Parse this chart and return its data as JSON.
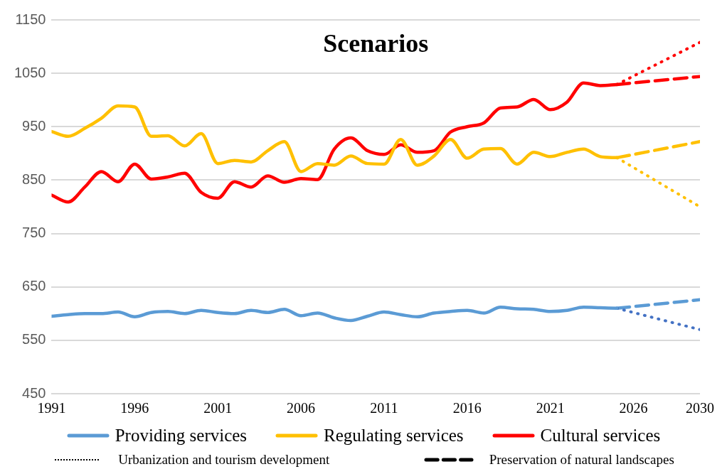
{
  "chart_data": {
    "type": "line",
    "title": "Scenarios",
    "xlim": [
      1991,
      2030
    ],
    "xticks": [
      1991,
      1996,
      2001,
      2006,
      2011,
      2016,
      2021,
      2026,
      2030
    ],
    "ylim": [
      450,
      1150
    ],
    "yticks": [
      450,
      550,
      650,
      750,
      850,
      950,
      1050,
      1150
    ],
    "grid": "y",
    "legend": "bottom",
    "line_style": "solid",
    "marker": "none",
    "series": [
      {
        "name": "Providing services",
        "color": "#5b9bd5",
        "x": [
          1991,
          1992,
          1993,
          1994,
          1995,
          1996,
          1997,
          1998,
          1999,
          2000,
          2001,
          2002,
          2003,
          2004,
          2005,
          2006,
          2007,
          2008,
          2009,
          2010,
          2011,
          2012,
          2013,
          2014,
          2015,
          2016,
          2017,
          2018,
          2019,
          2020,
          2021,
          2022,
          2023,
          2024,
          2025
        ],
        "values": [
          595,
          598,
          600,
          600,
          603,
          594,
          602,
          604,
          600,
          606,
          602,
          600,
          606,
          602,
          608,
          596,
          601,
          592,
          587,
          595,
          603,
          598,
          594,
          601,
          604,
          606,
          601,
          612,
          609,
          608,
          604,
          606,
          612,
          611,
          610
        ]
      },
      {
        "name": "Regulating services",
        "color": "#ffc000",
        "x": [
          1991,
          1992,
          1993,
          1994,
          1995,
          1996,
          1997,
          1998,
          1999,
          2000,
          2001,
          2002,
          2003,
          2004,
          2005,
          2006,
          2007,
          2008,
          2009,
          2010,
          2011,
          2012,
          2013,
          2014,
          2015,
          2016,
          2017,
          2018,
          2019,
          2020,
          2021,
          2022,
          2023,
          2024,
          2025
        ],
        "values": [
          941,
          932,
          947,
          966,
          989,
          987,
          932,
          933,
          914,
          937,
          881,
          887,
          884,
          905,
          922,
          866,
          881,
          878,
          895,
          881,
          880,
          926,
          878,
          895,
          926,
          891,
          908,
          909,
          880,
          902,
          894,
          902,
          908,
          894,
          892
        ]
      },
      {
        "name": "Cultural services",
        "color": "#ff0000",
        "x": [
          1991,
          1992,
          1993,
          1994,
          1995,
          1996,
          1997,
          1998,
          1999,
          2000,
          2001,
          2002,
          2003,
          2004,
          2005,
          2006,
          2007,
          2008,
          2009,
          2010,
          2011,
          2012,
          2013,
          2014,
          2015,
          2016,
          2017,
          2018,
          2019,
          2020,
          2021,
          2022,
          2023,
          2024,
          2025
        ],
        "values": [
          822,
          809,
          837,
          866,
          847,
          880,
          852,
          856,
          863,
          827,
          816,
          847,
          837,
          858,
          846,
          853,
          851,
          908,
          929,
          905,
          898,
          916,
          902,
          905,
          940,
          950,
          957,
          985,
          987,
          1001,
          982,
          996,
          1032,
          1027,
          1029
        ]
      },
      {
        "color": "#4472c4",
        "line_style": "dotted",
        "x": [
          2025,
          2030
        ],
        "values": [
          610,
          570
        ]
      },
      {
        "color": "#5b9bd5",
        "line_style": "dashed",
        "x": [
          2025,
          2030
        ],
        "values": [
          610,
          626
        ]
      },
      {
        "color": "#ffc000",
        "line_style": "dotted",
        "x": [
          2025,
          2030
        ],
        "values": [
          892,
          800
        ]
      },
      {
        "color": "#ffc000",
        "line_style": "dashed",
        "x": [
          2025,
          2030
        ],
        "values": [
          892,
          922
        ]
      },
      {
        "color": "#ff0000",
        "line_style": "dotted",
        "x": [
          2025,
          2030
        ],
        "values": [
          1029,
          1108
        ]
      },
      {
        "color": "#ff0000",
        "line_style": "dashed",
        "x": [
          2025,
          2030
        ],
        "values": [
          1029,
          1044
        ]
      }
    ],
    "annotations": [
      "Urbanization and tourism development",
      "Preservation of natural landscapes"
    ]
  }
}
